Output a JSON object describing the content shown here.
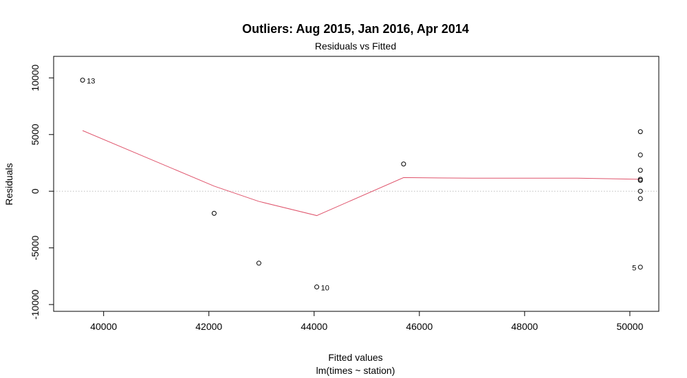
{
  "chart_data": {
    "type": "scatter",
    "title": "Outliers: Aug 2015, Jan 2016, Apr 2014",
    "subtitle": "Residuals vs Fitted",
    "xlabel": "Fitted values",
    "xlabel2": "lm(times ~ station)",
    "ylabel": "Residuals",
    "xlim": [
      39050,
      50550
    ],
    "ylim": [
      -10600,
      11900
    ],
    "x_ticks": [
      40000,
      42000,
      44000,
      46000,
      48000,
      50000
    ],
    "x_tick_labels": [
      "40000",
      "42000",
      "44000",
      "46000",
      "48000",
      "50000"
    ],
    "y_ticks": [
      10000,
      5000,
      0,
      -5000,
      -10000
    ],
    "y_tick_labels": [
      "10000",
      "5000",
      "0",
      "-5000",
      "-10000"
    ],
    "grid": false,
    "legend": "none",
    "points": [
      {
        "x": 39600,
        "y": 9800,
        "label": "13",
        "label_side": "right"
      },
      {
        "x": 42100,
        "y": -1950,
        "label": "",
        "label_side": ""
      },
      {
        "x": 42950,
        "y": -6350,
        "label": "",
        "label_side": ""
      },
      {
        "x": 44050,
        "y": -8450,
        "label": "10",
        "label_side": "right"
      },
      {
        "x": 45700,
        "y": 2400,
        "label": "",
        "label_side": ""
      },
      {
        "x": 50200,
        "y": 5250,
        "label": "",
        "label_side": ""
      },
      {
        "x": 50200,
        "y": 3200,
        "label": "",
        "label_side": ""
      },
      {
        "x": 50200,
        "y": 1850,
        "label": "",
        "label_side": ""
      },
      {
        "x": 50200,
        "y": 1050,
        "label": "",
        "label_side": ""
      },
      {
        "x": 50200,
        "y": 950,
        "label": "",
        "label_side": ""
      },
      {
        "x": 50200,
        "y": 0,
        "label": "",
        "label_side": ""
      },
      {
        "x": 50200,
        "y": -650,
        "label": "",
        "label_side": ""
      },
      {
        "x": 50200,
        "y": -6700,
        "label": "5",
        "label_side": "left"
      }
    ],
    "smooth_line": {
      "color": "#DF536B",
      "x": [
        39600,
        42100,
        42950,
        44050,
        45700,
        47000,
        49000,
        50200
      ],
      "y": [
        5350,
        450,
        -900,
        -2150,
        1200,
        1150,
        1150,
        1050
      ]
    },
    "reference_line": {
      "y": 0,
      "color": "#BEBEBE",
      "style": "dotted"
    }
  }
}
